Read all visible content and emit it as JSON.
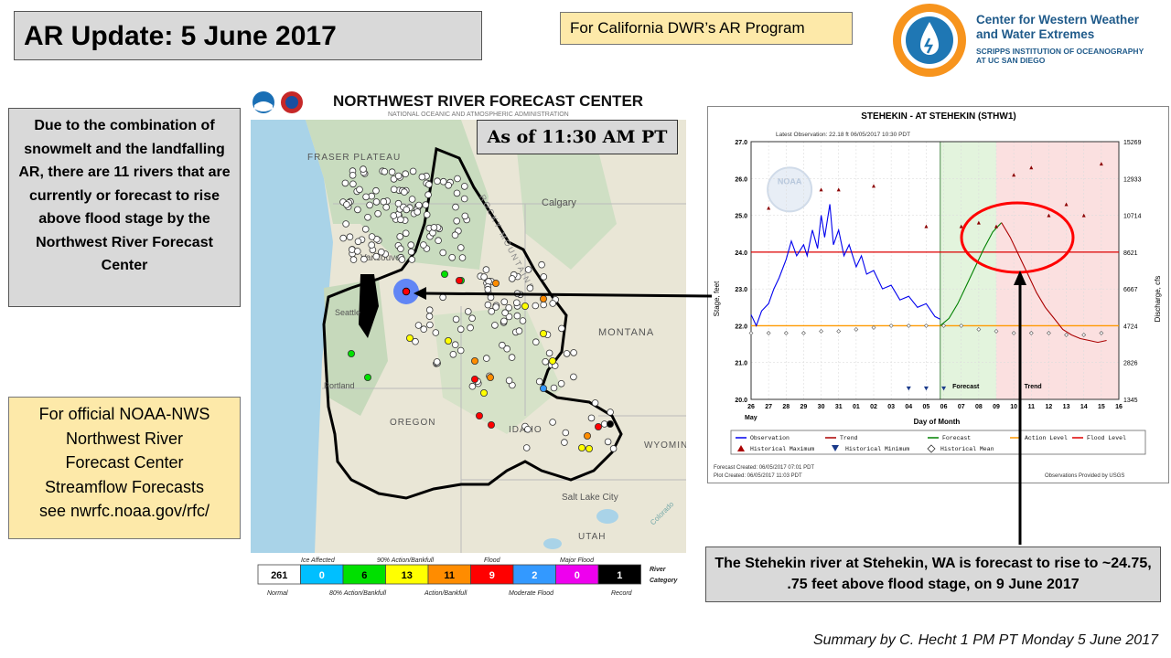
{
  "title": "AR Update: 5 June 2017",
  "program_label": "For California DWR’s AR Program",
  "org": {
    "name_line1": "Center for Western Weather",
    "name_line2": "and Water Extremes",
    "sub_line1": "SCRIPPS INSTITUTION OF OCEANOGRAPHY",
    "sub_line2": "AT UC SAN DIEGO",
    "logo_icon": "water-drop-icon"
  },
  "left_note": "Due to the combination of snowmelt and the landfalling AR, there are 11 rivers that are currently or forecast to rise above flood stage by the Northwest River Forecast Center",
  "nws_note_lines": [
    "For official NOAA-NWS",
    "Northwest River",
    "Forecast Center",
    "Streamflow Forecasts",
    "see nwrfc.noaa.gov/rfc/"
  ],
  "as_of": "As of 11:30 AM PT",
  "map": {
    "header": "NORTHWEST RIVER FORECAST CENTER",
    "subheader": "NATIONAL OCEANIC AND ATMOSPHERIC ADMINISTRATION",
    "place_labels": [
      "FRASER PLATEAU",
      "Calgary",
      "Vancouver",
      "Seattle",
      "Portland",
      "MONTANA",
      "OREGON",
      "IDAHO",
      "WYOMING",
      "Salt Lake City",
      "UTAH",
      "ROCKY MOUNTAINS",
      "Colorado"
    ],
    "legend": {
      "top_labels": [
        "Ice Affected",
        "90% Action/Bankfull",
        "Flood",
        "Major Flood"
      ],
      "bottom_labels": [
        "Normal",
        "80% Action/Bankfull",
        "Action/Bankfull",
        "Moderate Flood",
        "Record"
      ],
      "title_line1": "River",
      "title_line2": "Category",
      "categories": [
        {
          "count": "261",
          "color": "#ffffff",
          "text_color": "#000000"
        },
        {
          "count": "0",
          "color": "#00bfff",
          "text_color": "#ffffff"
        },
        {
          "count": "6",
          "color": "#00e000",
          "text_color": "#000000"
        },
        {
          "count": "13",
          "color": "#ffff00",
          "text_color": "#000000"
        },
        {
          "count": "11",
          "color": "#ff8c00",
          "text_color": "#000000"
        },
        {
          "count": "9",
          "color": "#ff0000",
          "text_color": "#ffffff"
        },
        {
          "count": "2",
          "color": "#3399ff",
          "text_color": "#ffffff"
        },
        {
          "count": "0",
          "color": "#ee00ee",
          "text_color": "#ffffff"
        },
        {
          "count": "1",
          "color": "#000000",
          "text_color": "#ffffff"
        }
      ]
    }
  },
  "chart_data": {
    "type": "line",
    "title": "STEHEKIN - AT STEHEKIN  (STHW1)",
    "latest_observation": "Latest Observation: 22.18 ft 06/05/2017 10:30 PDT",
    "ylabel": "Stage, feet",
    "ylabel_right": "Discharge, cfs",
    "xlabel": "Day of Month",
    "x_month": "May",
    "ylim": [
      20.0,
      27.0
    ],
    "y_ticks": [
      "27.0",
      "26.0",
      "25.0",
      "24.0",
      "23.0",
      "22.0",
      "21.0",
      "20.0"
    ],
    "right_ticks": [
      "15269",
      "12933",
      "10714",
      "8621",
      "6667",
      "4724",
      "2826",
      "1345"
    ],
    "x_ticks": [
      "26",
      "27",
      "28",
      "29",
      "30",
      "31",
      "01",
      "02",
      "03",
      "04",
      "05",
      "06",
      "07",
      "08",
      "09",
      "10",
      "11",
      "12",
      "13",
      "14",
      "15",
      "16"
    ],
    "flood_level": 24.0,
    "action_level": 22.0,
    "region_labels": [
      "Forecast",
      "Trend"
    ],
    "series": [
      {
        "name": "Observation",
        "color": "#0000ee",
        "x": [
          0,
          0.3,
          0.6,
          1.0,
          1.3,
          1.6,
          2.0,
          2.3,
          2.6,
          3.0,
          3.2,
          3.5,
          3.8,
          4.0,
          4.2,
          4.5,
          4.7,
          5.0,
          5.3,
          5.6,
          6.0,
          6.3,
          6.6,
          7.0,
          7.5,
          8.0,
          8.5,
          9.0,
          9.5,
          10.0,
          10.5,
          10.8
        ],
        "y": [
          22.3,
          22.0,
          22.4,
          22.6,
          23.0,
          23.3,
          23.8,
          24.3,
          23.9,
          24.2,
          23.9,
          24.6,
          24.1,
          25.0,
          24.4,
          25.3,
          24.2,
          24.6,
          23.9,
          24.2,
          23.6,
          23.9,
          23.4,
          23.5,
          23.0,
          23.1,
          22.7,
          22.8,
          22.5,
          22.6,
          22.25,
          22.18
        ]
      },
      {
        "name": "Forecast",
        "color": "#008000",
        "x": [
          10.8,
          11.3,
          11.8,
          12.3,
          12.8,
          13.3,
          13.8,
          14.3
        ],
        "y": [
          22.0,
          22.2,
          22.6,
          23.1,
          23.6,
          24.1,
          24.55,
          24.8
        ]
      },
      {
        "name": "Trend",
        "color": "#aa0000",
        "x": [
          14.3,
          14.8,
          15.3,
          15.8,
          16.3,
          16.8,
          17.3,
          17.8,
          18.3,
          18.8,
          19.3,
          19.8,
          20.3
        ],
        "y": [
          24.8,
          24.4,
          23.9,
          23.4,
          22.9,
          22.5,
          22.2,
          21.9,
          21.75,
          21.65,
          21.6,
          21.55,
          21.6
        ]
      }
    ],
    "historical_maximum": {
      "x": [
        1,
        4,
        5,
        7,
        10,
        12,
        13,
        14,
        15,
        16,
        17,
        18,
        19,
        20
      ],
      "y": [
        25.2,
        25.7,
        25.7,
        25.8,
        24.7,
        24.7,
        24.8,
        24.7,
        26.1,
        26.3,
        25.0,
        25.3,
        25.0,
        26.4
      ]
    },
    "historical_minimum": {
      "x": [
        9,
        10,
        11
      ],
      "y": [
        20.3,
        20.3,
        20.3
      ]
    },
    "historical_mean": {
      "x": [
        0,
        1,
        2,
        3,
        4,
        5,
        6,
        7,
        8,
        9,
        10,
        11,
        12,
        13,
        14,
        15,
        16,
        17,
        18,
        19,
        20
      ],
      "y": [
        21.8,
        21.8,
        21.8,
        21.8,
        21.85,
        21.85,
        21.9,
        21.95,
        22.0,
        22.0,
        22.0,
        22.0,
        22.0,
        21.9,
        21.85,
        21.8,
        21.8,
        21.8,
        21.75,
        21.75,
        21.8
      ]
    },
    "legend": [
      "Observation",
      "Trend",
      "Forecast",
      "Action Level",
      "Flood Level",
      "Historical Maximum",
      "Historical Minimum",
      "Historical Mean"
    ],
    "footer": [
      "Forecast Created: 06/05/2017 07:01 PDT",
      "Plot Created: 06/05/2017 11:03 PDT",
      "Observations Provided by USGS"
    ],
    "watermark": "NOAA"
  },
  "stehekin_note": "The Stehekin river at Stehekin, WA is forecast to rise to ~24.75, .75 feet above flood stage, on 9 June 2017",
  "summary": "Summary by C. Hecht 1 PM PT Monday 5 June 2017"
}
